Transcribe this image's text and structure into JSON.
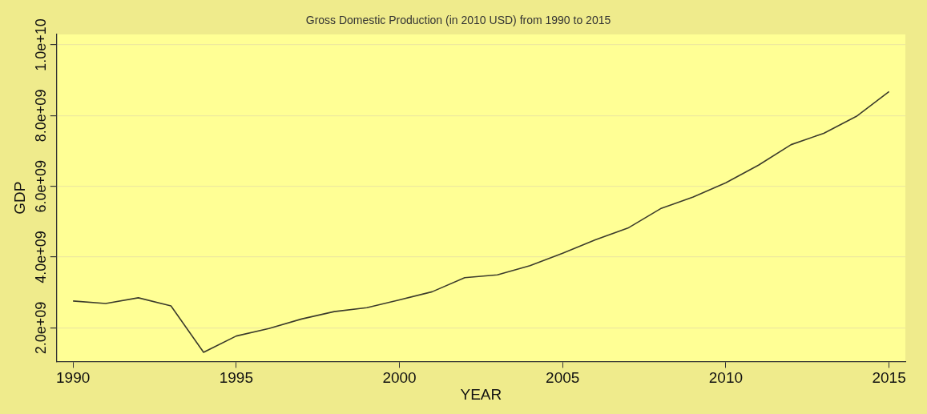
{
  "chart_data": {
    "type": "line",
    "title": "Gross Domestic Production (in 2010 USD) from 1990 to 2015",
    "xlabel": "YEAR",
    "ylabel": "GDP",
    "x": [
      1990,
      1991,
      1992,
      1993,
      1994,
      1995,
      1996,
      1997,
      1998,
      1999,
      2000,
      2001,
      2002,
      2003,
      2004,
      2005,
      2006,
      2007,
      2008,
      2009,
      2010,
      2011,
      2012,
      2013,
      2014,
      2015
    ],
    "series": [
      {
        "color": "#3c3c2c",
        "values": [
          2760000000.0,
          2690000000.0,
          2850000000.0,
          2620000000.0,
          1310000000.0,
          1770000000.0,
          1980000000.0,
          2250000000.0,
          2460000000.0,
          2570000000.0,
          2790000000.0,
          3020000000.0,
          3420000000.0,
          3500000000.0,
          3760000000.0,
          4110000000.0,
          4490000000.0,
          4820000000.0,
          5370000000.0,
          5700000000.0,
          6100000000.0,
          6600000000.0,
          7180000000.0,
          7500000000.0,
          7980000000.0,
          8680000000.0
        ]
      }
    ],
    "xlim": [
      1989.5,
      2015.5
    ],
    "xticks": [
      1990,
      1995,
      2000,
      2005,
      2010,
      2015
    ],
    "ylim": [
      1050000000.0,
      10300000000.0
    ],
    "yticks": [
      {
        "value": 2000000000.0,
        "label": "2.0e+09"
      },
      {
        "value": 4000000000.0,
        "label": "4.0e+09"
      },
      {
        "value": 6000000000.0,
        "label": "6.0e+09"
      },
      {
        "value": 8000000000.0,
        "label": "8.0e+09"
      },
      {
        "value": 10000000000.0,
        "label": "1.0e+10"
      }
    ],
    "grid": "y",
    "legend": false,
    "marker": "none",
    "line_style": "solid"
  }
}
